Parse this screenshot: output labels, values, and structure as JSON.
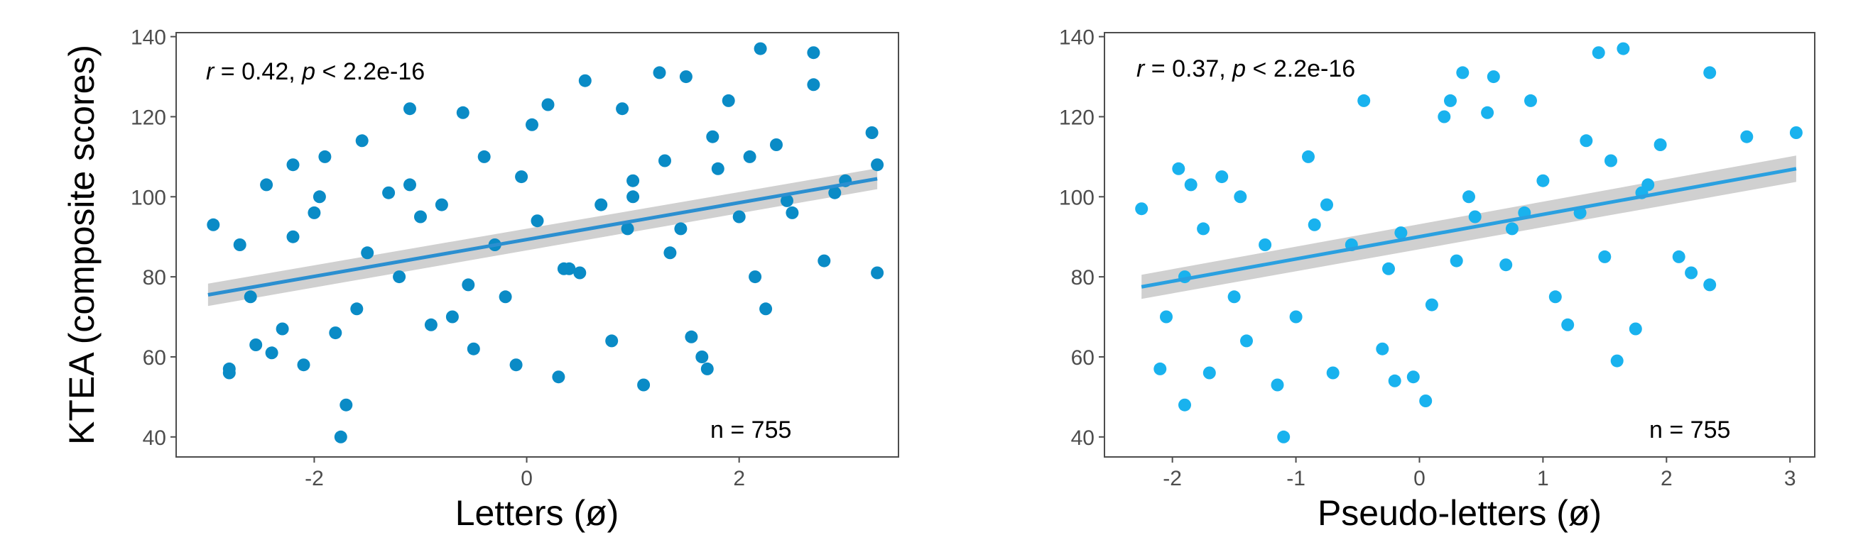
{
  "chart_data": [
    {
      "type": "scatter",
      "xlabel": "Letters (ø)",
      "ylabel": "KTEA (composite scores)",
      "xlim": [
        -3.3,
        3.5
      ],
      "ylim": [
        35,
        141
      ],
      "xticks": [
        -2,
        0,
        2
      ],
      "xtick_labels": [
        "-2",
        "0",
        "2"
      ],
      "yticks": [
        40,
        60,
        80,
        100,
        120,
        140
      ],
      "ytick_labels": [
        "40",
        "60",
        "80",
        "100",
        "120",
        "140"
      ],
      "grid": false,
      "point_color": "#0a8bc6",
      "annotation": {
        "r_symbol": "r",
        "r_text": " = 0.42, ",
        "p_symbol": "p",
        "p_text": " < 2.2e-16"
      },
      "n_label": "n = 755",
      "trend": {
        "x": [
          -3.0,
          3.3
        ],
        "y": [
          75.5,
          104.5
        ],
        "ci": [
          2.8,
          2.6
        ],
        "color": "#2b8fd0"
      },
      "points": {
        "x": [
          -2.95,
          -2.8,
          -2.8,
          -2.6,
          -2.55,
          -2.45,
          -2.3,
          -2.2,
          -2.1,
          -1.95,
          -1.8,
          -1.7,
          -1.75,
          -1.55,
          -1.2,
          -1.1,
          -0.9,
          -0.8,
          -0.6,
          -0.5,
          -0.4,
          -0.2,
          -0.1,
          0.05,
          0.2,
          0.3,
          0.4,
          0.55,
          0.8,
          0.9,
          1.0,
          1.1,
          1.25,
          1.35,
          1.5,
          1.65,
          1.7,
          1.9,
          2.0,
          2.2,
          2.25,
          2.35,
          2.5,
          2.7,
          2.8,
          3.0,
          3.25,
          3.3,
          -2.7,
          -2.2,
          -1.9,
          -1.5,
          -1.3,
          -1.0,
          -0.7,
          -0.3,
          0.1,
          0.5,
          0.7,
          1.0,
          1.45,
          1.55,
          1.8,
          2.1,
          2.45,
          2.7,
          3.3,
          -2.4,
          -2.0,
          -1.6,
          -1.1,
          -0.55,
          -0.05,
          0.35,
          0.95,
          1.3,
          1.75,
          2.15,
          2.9
        ],
        "y": [
          93,
          57,
          56,
          75,
          63,
          103,
          67,
          108,
          58,
          100,
          66,
          48,
          40,
          114,
          80,
          122,
          68,
          98,
          121,
          62,
          110,
          75,
          58,
          118,
          123,
          55,
          82,
          129,
          64,
          122,
          100,
          53,
          131,
          86,
          130,
          60,
          57,
          124,
          95,
          137,
          72,
          113,
          96,
          136,
          84,
          104,
          116,
          81,
          88,
          90,
          110,
          86,
          101,
          95,
          70,
          88,
          94,
          81,
          98,
          104,
          92,
          65,
          107,
          110,
          99,
          128,
          108,
          61,
          96,
          72,
          103,
          78,
          105,
          82,
          92,
          109,
          115,
          80,
          101
        ]
      }
    },
    {
      "type": "scatter",
      "xlabel": "Pseudo-letters (ø)",
      "ylabel": "",
      "xlim": [
        -2.55,
        3.2
      ],
      "ylim": [
        35,
        141
      ],
      "xticks": [
        -2,
        -1,
        0,
        1,
        2,
        3
      ],
      "xtick_labels": [
        "-2",
        "-1",
        "0",
        "1",
        "2",
        "3"
      ],
      "yticks": [
        40,
        60,
        80,
        100,
        120,
        140
      ],
      "ytick_labels": [
        "40",
        "60",
        "80",
        "100",
        "120",
        "140"
      ],
      "grid": false,
      "point_color": "#19b2ee",
      "annotation": {
        "r_symbol": "r",
        "r_text": " = 0.37, ",
        "p_symbol": "p",
        "p_text": " < 2.2e-16"
      },
      "n_label": "n = 755",
      "trend": {
        "x": [
          -2.25,
          3.05
        ],
        "y": [
          77.5,
          107.0
        ],
        "ci": [
          3.0,
          3.3
        ],
        "color": "#2aa0e0"
      },
      "points": {
        "x": [
          -2.25,
          -2.1,
          -1.95,
          -1.9,
          -1.85,
          -1.7,
          -1.6,
          -1.4,
          -1.15,
          -1.1,
          -0.9,
          -0.7,
          -0.45,
          -0.3,
          -0.2,
          -0.05,
          0.05,
          0.2,
          0.25,
          0.35,
          0.45,
          0.55,
          0.6,
          0.75,
          0.9,
          1.1,
          1.2,
          1.35,
          1.45,
          1.6,
          1.65,
          1.75,
          1.85,
          1.95,
          2.1,
          2.35,
          2.35,
          2.65,
          3.05,
          -2.05,
          -1.75,
          -1.5,
          -1.25,
          -1.0,
          -0.75,
          -0.55,
          -0.25,
          0.1,
          0.4,
          0.7,
          1.0,
          1.3,
          1.55,
          1.8,
          2.2,
          -1.9,
          -1.45,
          -0.85,
          -0.15,
          0.3,
          0.85,
          1.5
        ],
        "y": [
          97,
          57,
          107,
          48,
          103,
          56,
          105,
          64,
          53,
          40,
          110,
          56,
          124,
          62,
          54,
          55,
          49,
          120,
          124,
          131,
          95,
          121,
          130,
          92,
          124,
          75,
          68,
          114,
          136,
          59,
          137,
          67,
          103,
          113,
          85,
          131,
          78,
          115,
          116,
          70,
          92,
          75,
          88,
          70,
          98,
          88,
          82,
          73,
          100,
          83,
          104,
          96,
          109,
          101,
          81,
          80,
          100,
          93,
          91,
          84,
          96,
          85
        ]
      }
    }
  ]
}
